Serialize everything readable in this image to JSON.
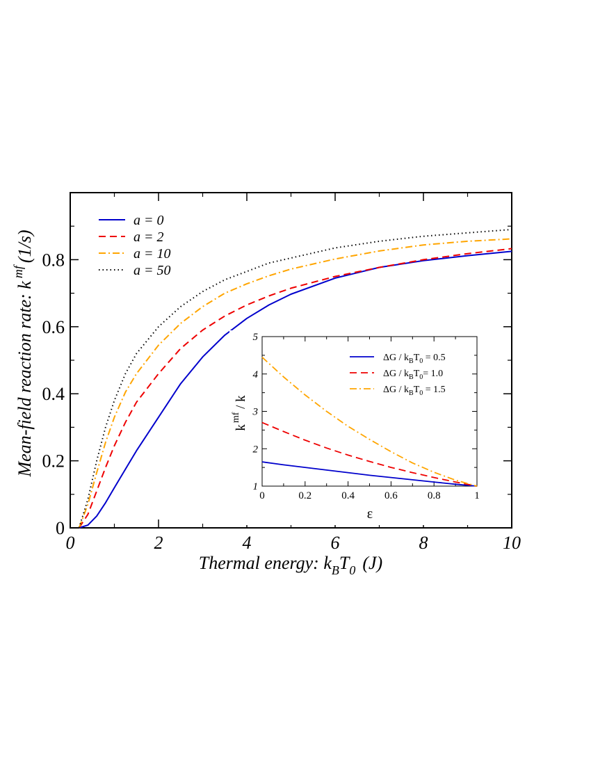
{
  "chart_data": [
    {
      "type": "line",
      "xlabel": {
        "main": "Thermal energy: k",
        "sub1": "B",
        "mid": "T",
        "sub2": "0",
        "unit": "(J)"
      },
      "ylabel": {
        "main": "Mean-field reaction rate: k",
        "sup": "mf",
        "unit": "(1/s)"
      },
      "xlim": [
        0,
        10
      ],
      "ylim": [
        0,
        1.0
      ],
      "xticks": [
        0,
        2,
        4,
        6,
        8,
        10
      ],
      "xtick_labels": [
        "0",
        "2",
        "4",
        "6",
        "8",
        "10"
      ],
      "yticks": [
        0,
        0.2,
        0.4,
        0.6,
        0.8
      ],
      "ytick_labels": [
        "0",
        "0.2",
        "0.4",
        "0.6",
        "0.8"
      ],
      "grid": false,
      "legend_position": "top-left",
      "series": [
        {
          "name": "a = 0",
          "color": "#0000cc",
          "dash": "solid",
          "x": [
            0.2,
            0.4,
            0.6,
            0.8,
            1.0,
            1.25,
            1.5,
            2.0,
            2.5,
            3.0,
            3.5,
            4.0,
            4.5,
            5.0,
            6.0,
            7.0,
            8.0,
            9.0,
            10.0
          ],
          "y": [
            0.0,
            0.008,
            0.035,
            0.075,
            0.12,
            0.175,
            0.23,
            0.33,
            0.43,
            0.51,
            0.575,
            0.625,
            0.665,
            0.697,
            0.745,
            0.777,
            0.797,
            0.812,
            0.825
          ]
        },
        {
          "name": "a = 2",
          "color": "#ee0000",
          "dash": "dashed",
          "x": [
            0.2,
            0.4,
            0.6,
            0.8,
            1.0,
            1.25,
            1.5,
            2.0,
            2.5,
            3.0,
            3.5,
            4.0,
            4.5,
            5.0,
            6.0,
            7.0,
            8.0,
            9.0,
            10.0
          ],
          "y": [
            0.0,
            0.04,
            0.11,
            0.18,
            0.245,
            0.315,
            0.375,
            0.46,
            0.535,
            0.59,
            0.632,
            0.665,
            0.692,
            0.715,
            0.75,
            0.777,
            0.8,
            0.818,
            0.833
          ]
        },
        {
          "name": "a = 10",
          "color": "#ffa500",
          "dash": "dashdot",
          "x": [
            0.2,
            0.4,
            0.6,
            0.8,
            1.0,
            1.25,
            1.5,
            2.0,
            2.5,
            3.0,
            3.5,
            4.0,
            4.5,
            5.0,
            6.0,
            7.0,
            8.0,
            9.0,
            10.0
          ],
          "y": [
            0.0,
            0.07,
            0.165,
            0.255,
            0.33,
            0.405,
            0.46,
            0.545,
            0.61,
            0.66,
            0.7,
            0.728,
            0.752,
            0.772,
            0.802,
            0.826,
            0.844,
            0.855,
            0.862
          ]
        },
        {
          "name": "a = 50",
          "color": "#000000",
          "dash": "dotted",
          "x": [
            0.2,
            0.4,
            0.6,
            0.8,
            1.0,
            1.25,
            1.5,
            2.0,
            2.5,
            3.0,
            3.5,
            4.0,
            4.5,
            5.0,
            6.0,
            7.0,
            8.0,
            9.0,
            10.0
          ],
          "y": [
            0.0,
            0.085,
            0.2,
            0.3,
            0.38,
            0.46,
            0.52,
            0.6,
            0.66,
            0.705,
            0.74,
            0.765,
            0.79,
            0.805,
            0.835,
            0.855,
            0.87,
            0.88,
            0.89
          ]
        }
      ]
    },
    {
      "type": "line",
      "xlabel": "ε",
      "ylabel": {
        "main": "k",
        "sup": "mf",
        "tail": " / k"
      },
      "xlim": [
        0,
        1
      ],
      "ylim": [
        1,
        5
      ],
      "xticks": [
        0,
        0.2,
        0.4,
        0.6,
        0.8,
        1
      ],
      "xtick_labels": [
        "0",
        "0.2",
        "0.4",
        "0.6",
        "0.8",
        "1"
      ],
      "yticks": [
        1,
        2,
        3,
        4,
        5
      ],
      "ytick_labels": [
        "1",
        "2",
        "3",
        "4",
        "5"
      ],
      "grid": false,
      "legend_position": "top-right",
      "series": [
        {
          "name": {
            "pre": "ΔG / k",
            "sub1": "B",
            "mid": "T",
            "sub2": "0",
            "post": " = 0.5"
          },
          "color": "#0000cc",
          "dash": "solid",
          "x": [
            0,
            0.1,
            0.2,
            0.3,
            0.4,
            0.5,
            0.6,
            0.7,
            0.8,
            0.9,
            1.0
          ],
          "y": [
            1.65,
            1.57,
            1.5,
            1.43,
            1.36,
            1.29,
            1.23,
            1.17,
            1.11,
            1.05,
            1.0
          ]
        },
        {
          "name": {
            "pre": "ΔG / k",
            "sub1": "B",
            "mid": "T",
            "sub2": "0",
            "post": "= 1.0"
          },
          "color": "#ee0000",
          "dash": "dashed",
          "x": [
            0,
            0.1,
            0.2,
            0.3,
            0.4,
            0.5,
            0.6,
            0.7,
            0.8,
            0.9,
            1.0
          ],
          "y": [
            2.7,
            2.46,
            2.23,
            2.02,
            1.83,
            1.66,
            1.5,
            1.36,
            1.23,
            1.11,
            1.0
          ]
        },
        {
          "name": {
            "pre": "ΔG / k",
            "sub1": "B",
            "mid": "T",
            "sub2": "0",
            "post": " = 1.5"
          },
          "color": "#ffa500",
          "dash": "dashdot",
          "x": [
            0,
            0.1,
            0.2,
            0.3,
            0.4,
            0.5,
            0.6,
            0.7,
            0.8,
            0.9,
            1.0
          ],
          "y": [
            4.45,
            3.92,
            3.44,
            3.0,
            2.6,
            2.25,
            1.92,
            1.62,
            1.37,
            1.16,
            1.0
          ]
        }
      ]
    }
  ]
}
